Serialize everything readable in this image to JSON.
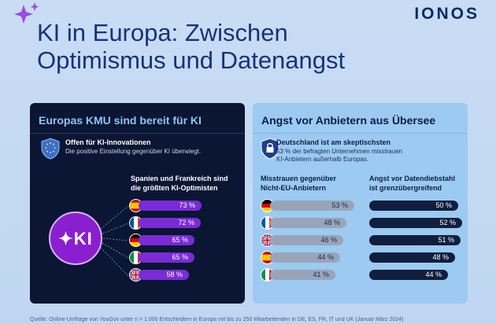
{
  "brand": "IONOS",
  "title_line1": "KI in Europa: Zwischen",
  "title_line2": "Optimismus und Datenangst",
  "left": {
    "heading": "Europas KMU sind bereit für KI",
    "sub_title": "Offen für KI-Innovationen",
    "sub_text": "Die positive Einstellung gegenüber KI überwiegt.",
    "list_head_1": "Spanien und Frankreich sind",
    "list_head_2": "die größten KI-Optimisten",
    "ki_label": "KI",
    "rows": [
      {
        "flag": "es",
        "label": "73 %",
        "value": 73
      },
      {
        "flag": "fr",
        "label": "72 %",
        "value": 72
      },
      {
        "flag": "de",
        "label": "65 %",
        "value": 65
      },
      {
        "flag": "it",
        "label": "65 %",
        "value": 65
      },
      {
        "flag": "uk",
        "label": "58 %",
        "value": 58
      }
    ]
  },
  "right": {
    "heading": "Angst vor Anbietern aus Übersee",
    "sub_title": "Deutschland ist am skeptischsten",
    "sub_text_1": "53 % der befragten Unternehmen misstrauen",
    "sub_text_2": "KI-Anbietern außerhalb Europas.",
    "col1_line1": "Misstrauen gegenüber",
    "col1_line2": "Nicht-EU-Anbietern",
    "col2_line1": "Angst vor Datendiebstahl",
    "col2_line2": "ist grenzübergreifend",
    "rows": [
      {
        "flag": "de",
        "mistrust_label": "53 %",
        "mistrust": 53,
        "theft_label": "50 %",
        "theft": 50
      },
      {
        "flag": "fr",
        "mistrust_label": "48 %",
        "mistrust": 48,
        "theft_label": "52 %",
        "theft": 52
      },
      {
        "flag": "uk",
        "mistrust_label": "46 %",
        "mistrust": 46,
        "theft_label": "51 %",
        "theft": 51
      },
      {
        "flag": "es",
        "mistrust_label": "44 %",
        "mistrust": 44,
        "theft_label": "48 %",
        "theft": 48
      },
      {
        "flag": "it",
        "mistrust_label": "41 %",
        "mistrust": 41,
        "theft_label": "44 %",
        "theft": 44
      }
    ]
  },
  "footer": "Quelle: Online-Umfrage von YouGov unter n = 1.000 Entscheidern in Europa mit bis zu 250 Mitarbeitenden in DE, ES, FR, IT und UK (Januar März 2024)",
  "colors": {
    "accent_purple": "#7a2bd6",
    "dark_navy": "#0a1633",
    "light_blue_panel": "#9ccaf0"
  }
}
